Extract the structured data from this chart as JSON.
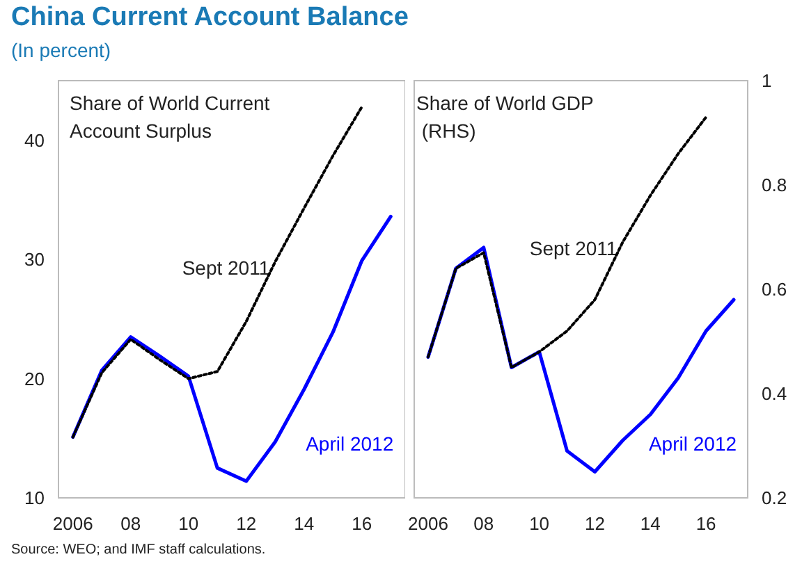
{
  "chart_data": [
    {
      "type": "line",
      "title": "China Current Account Balance",
      "subtitle": "(In percent)",
      "annotations": [
        "Share of World Current Account Surplus",
        "Source: WEO; and IMF staff calculations."
      ],
      "x": [
        2006,
        2007,
        2008,
        2009,
        2010,
        2011,
        2012,
        2013,
        2014,
        2015,
        2016,
        2017
      ],
      "xlim": [
        2005.5,
        2017.5
      ],
      "xticks": [
        {
          "value": 2006,
          "label": "2006"
        },
        {
          "value": 2008,
          "label": "08"
        },
        {
          "value": 2010,
          "label": "10"
        },
        {
          "value": 2012,
          "label": "12"
        },
        {
          "value": 2014,
          "label": "14"
        },
        {
          "value": 2016,
          "label": "16"
        }
      ],
      "ylim": [
        10,
        45
      ],
      "yticks": [
        10,
        20,
        30,
        40
      ],
      "grid": false,
      "legend": false,
      "marker": "none",
      "series": [
        {
          "name": "April 2012",
          "color": "#0000ff",
          "line_style": "solid",
          "values": [
            15.1,
            20.7,
            23.5,
            21.9,
            20.2,
            12.5,
            11.4,
            14.7,
            19.1,
            23.9,
            29.9,
            33.6
          ]
        },
        {
          "name": "Sept 2011",
          "color": "#000000",
          "line_style": "dotted",
          "x": [
            2006,
            2007,
            2008,
            2009,
            2010,
            2011,
            2012,
            2013,
            2014,
            2015,
            2016
          ],
          "values": [
            15.1,
            20.5,
            23.3,
            21.6,
            20.0,
            20.6,
            24.8,
            29.8,
            34.3,
            38.7,
            42.8
          ]
        }
      ]
    },
    {
      "type": "line",
      "annotations": [
        "Share of World GDP (RHS)"
      ],
      "x": [
        2006,
        2007,
        2008,
        2009,
        2010,
        2011,
        2012,
        2013,
        2014,
        2015,
        2016,
        2017
      ],
      "xlim": [
        2005.5,
        2017.5
      ],
      "xticks": [
        {
          "value": 2006,
          "label": "2006"
        },
        {
          "value": 2008,
          "label": "08"
        },
        {
          "value": 2010,
          "label": "10"
        },
        {
          "value": 2012,
          "label": "12"
        },
        {
          "value": 2014,
          "label": "14"
        },
        {
          "value": 2016,
          "label": "16"
        }
      ],
      "y2lim": [
        0.2,
        1
      ],
      "y2ticks": [
        0.2,
        0.4,
        0.6,
        0.8,
        1
      ],
      "grid": false,
      "legend": false,
      "marker": "none",
      "series": [
        {
          "name": "April 2012",
          "color": "#0000ff",
          "line_style": "solid",
          "axis": "y2",
          "values": [
            0.47,
            0.64,
            0.68,
            0.45,
            0.48,
            0.29,
            0.25,
            0.31,
            0.36,
            0.43,
            0.52,
            0.58
          ]
        },
        {
          "name": "Sept 2011",
          "color": "#000000",
          "line_style": "dotted",
          "axis": "y2",
          "x": [
            2006,
            2007,
            2008,
            2009,
            2010,
            2011,
            2012,
            2013,
            2014,
            2015,
            2016
          ],
          "values": [
            0.47,
            0.64,
            0.67,
            0.45,
            0.48,
            0.52,
            0.58,
            0.69,
            0.78,
            0.86,
            0.93
          ]
        }
      ]
    }
  ]
}
